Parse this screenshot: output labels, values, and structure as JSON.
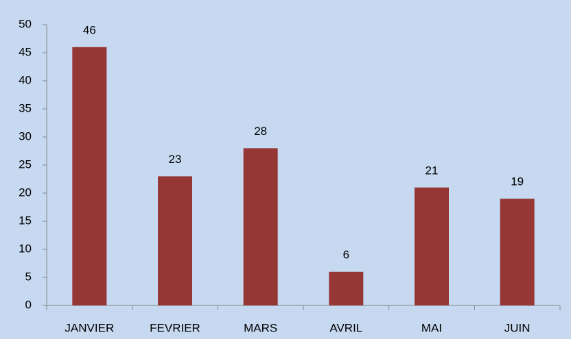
{
  "chart_data": {
    "type": "bar",
    "categories": [
      "JANVIER",
      "FEVRIER",
      "MARS",
      "AVRIL",
      "MAI",
      "JUIN"
    ],
    "values": [
      46,
      23,
      28,
      6,
      21,
      19
    ],
    "color": "#953735",
    "ylim": [
      0,
      50
    ],
    "yticks": [
      0,
      5,
      10,
      15,
      20,
      25,
      30,
      35,
      40,
      45,
      50
    ],
    "grid": false,
    "data_labels": true
  }
}
